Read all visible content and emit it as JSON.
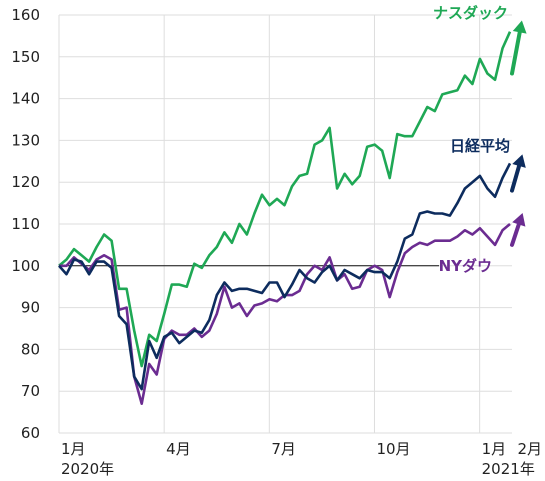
{
  "chart_data": {
    "type": "line",
    "title": "",
    "xlabel": "",
    "ylabel": "",
    "ylim": [
      60,
      160
    ],
    "yticks": [
      60,
      70,
      80,
      90,
      100,
      110,
      120,
      130,
      140,
      150,
      160
    ],
    "x_range_weeks": [
      0,
      56
    ],
    "x_tick_labels": [
      {
        "week": 0,
        "line1": "1月",
        "line2": "2020年"
      },
      {
        "week": 13,
        "line1": "4月",
        "line2": ""
      },
      {
        "week": 26,
        "line1": "7月",
        "line2": ""
      },
      {
        "week": 39,
        "line1": "10月",
        "line2": ""
      },
      {
        "week": 52,
        "line1": "1月",
        "line2": "2021年"
      },
      {
        "week": 56.5,
        "line1": "2月",
        "line2": ""
      }
    ],
    "baseline": 100,
    "grid": true,
    "series": [
      {
        "name": "ナスダック",
        "color": "#1fa855",
        "values": [
          100,
          101.5,
          104,
          102.5,
          101,
          104.5,
          107.5,
          106,
          94.5,
          94.5,
          84.5,
          76,
          83.5,
          82,
          88.5,
          95.5,
          95.5,
          95,
          100.5,
          99.5,
          102.5,
          104.5,
          108,
          105.5,
          110,
          107.5,
          112.5,
          117,
          114.5,
          116,
          114.5,
          119,
          121.5,
          122,
          129,
          130,
          133,
          118.5,
          122,
          119.5,
          121.5,
          128.5,
          129,
          127.5,
          121,
          131.5,
          131,
          131,
          134.5,
          138,
          137,
          141,
          141.5,
          142,
          145.5,
          143.5,
          149.5,
          146,
          144.5,
          152,
          156
        ]
      },
      {
        "name": "日経平均",
        "color": "#0d2c5e",
        "values": [
          100,
          98,
          101.5,
          101,
          98,
          101,
          101,
          99.5,
          88,
          86,
          73.5,
          70.5,
          82,
          78,
          83,
          84,
          81.5,
          83,
          84.5,
          84,
          87,
          93,
          96,
          94,
          94.5,
          94.5,
          94,
          93.5,
          96,
          96,
          92.5,
          95.5,
          99,
          97,
          96,
          98.5,
          100,
          96.5,
          99,
          98,
          97,
          99,
          98.5,
          98.5,
          97,
          101,
          106.5,
          107.5,
          112.5,
          113,
          112.5,
          112.5,
          112,
          115,
          118.5,
          120,
          121.5,
          118.5,
          116.5,
          121,
          124.5
        ]
      },
      {
        "name": "NYダウ",
        "color": "#6b2c91",
        "values": [
          100,
          100,
          102,
          100.5,
          99,
          101.5,
          102.5,
          101.5,
          89.5,
          90,
          73.5,
          67,
          76.5,
          74,
          82.5,
          84.5,
          83.5,
          83.5,
          85,
          83,
          84.5,
          88.5,
          95,
          90,
          91,
          88,
          90.5,
          91,
          92,
          91.5,
          93,
          93,
          94,
          98,
          100,
          99,
          102,
          96.5,
          98,
          94.5,
          95,
          99,
          100,
          99,
          92.5,
          98.5,
          103,
          104.5,
          105.5,
          105,
          106,
          106,
          106,
          107,
          108.5,
          107.5,
          109,
          107,
          105,
          108.5,
          110
        ]
      }
    ]
  }
}
